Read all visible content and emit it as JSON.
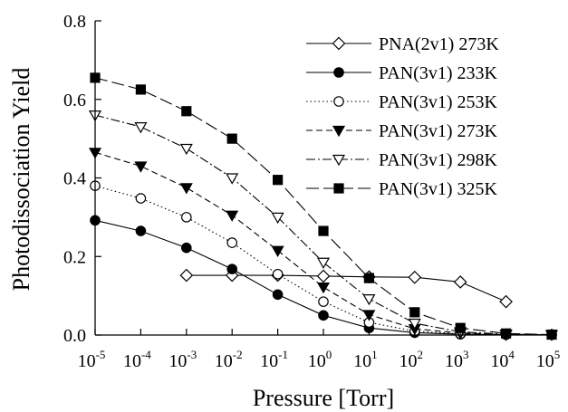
{
  "chart_data": {
    "type": "line",
    "xlabel": "Pressure [Torr]",
    "ylabel": "Photodissociation Yield",
    "xscale": "log",
    "xlim": [
      -5,
      5
    ],
    "ylim": [
      0,
      0.8
    ],
    "grid": false,
    "legend_position": "top-right",
    "x_ticks": [
      {
        "base": "10",
        "exp": "-5",
        "value": -5
      },
      {
        "base": "10",
        "exp": "-4",
        "value": -4
      },
      {
        "base": "10",
        "exp": "-3",
        "value": -3
      },
      {
        "base": "10",
        "exp": "-2",
        "value": -2
      },
      {
        "base": "10",
        "exp": "-1",
        "value": -1
      },
      {
        "base": "10",
        "exp": "0",
        "value": 0
      },
      {
        "base": "10",
        "exp": "1",
        "value": 1
      },
      {
        "base": "10",
        "exp": "2",
        "value": 2
      },
      {
        "base": "10",
        "exp": "3",
        "value": 3
      },
      {
        "base": "10",
        "exp": "4",
        "value": 4
      },
      {
        "base": "10",
        "exp": "5",
        "value": 5
      }
    ],
    "y_ticks": [
      {
        "label": "0.0",
        "value": 0.0
      },
      {
        "label": "0.2",
        "value": 0.2
      },
      {
        "label": "0.4",
        "value": 0.4
      },
      {
        "label": "0.6",
        "value": 0.6
      },
      {
        "label": "0.8",
        "value": 0.8
      }
    ],
    "series": [
      {
        "name": "PNA(2v1) 273K",
        "marker": "diamond-open",
        "dash": "",
        "color": "#000000",
        "x": [
          -3,
          -2,
          -1,
          0,
          1,
          2,
          3,
          4
        ],
        "y": [
          0.152,
          0.152,
          0.152,
          0.15,
          0.148,
          0.147,
          0.135,
          0.085
        ]
      },
      {
        "name": "PAN(3v1) 233K",
        "marker": "circle-filled",
        "dash": "",
        "color": "#000000",
        "x": [
          -5,
          -4,
          -3,
          -2,
          -1,
          0,
          1,
          2,
          3,
          4,
          5
        ],
        "y": [
          0.292,
          0.265,
          0.222,
          0.168,
          0.103,
          0.05,
          0.018,
          0.006,
          0.002,
          0.001,
          0.001
        ]
      },
      {
        "name": "PAN(3v1) 253K",
        "marker": "circle-open",
        "dash": "1.5,3",
        "color": "#000000",
        "x": [
          -5,
          -4,
          -3,
          -2,
          -1,
          0,
          1,
          2,
          3,
          4,
          5
        ],
        "y": [
          0.38,
          0.348,
          0.3,
          0.235,
          0.155,
          0.085,
          0.032,
          0.01,
          0.003,
          0.001,
          0.001
        ]
      },
      {
        "name": "PAN(3v1) 273K",
        "marker": "triangle-down-filled",
        "dash": "7,4",
        "color": "#000000",
        "x": [
          -5,
          -4,
          -3,
          -2,
          -1,
          0,
          1,
          2,
          3,
          4,
          5
        ],
        "y": [
          0.465,
          0.43,
          0.375,
          0.305,
          0.215,
          0.122,
          0.052,
          0.016,
          0.005,
          0.001,
          0.001
        ]
      },
      {
        "name": "PAN(3v1) 298K",
        "marker": "triangle-down-open",
        "dash": "10,3,2,3",
        "color": "#000000",
        "x": [
          -5,
          -4,
          -3,
          -2,
          -1,
          0,
          1,
          2,
          3,
          4,
          5
        ],
        "y": [
          0.56,
          0.53,
          0.475,
          0.4,
          0.3,
          0.185,
          0.092,
          0.03,
          0.008,
          0.002,
          0.001
        ]
      },
      {
        "name": "PAN(3v1) 325K",
        "marker": "square-filled",
        "dash": "14,5",
        "color": "#000000",
        "x": [
          -5,
          -4,
          -3,
          -2,
          -1,
          0,
          1,
          2,
          3,
          4,
          5
        ],
        "y": [
          0.655,
          0.625,
          0.57,
          0.5,
          0.395,
          0.265,
          0.145,
          0.058,
          0.018,
          0.004,
          0.001
        ]
      }
    ]
  }
}
